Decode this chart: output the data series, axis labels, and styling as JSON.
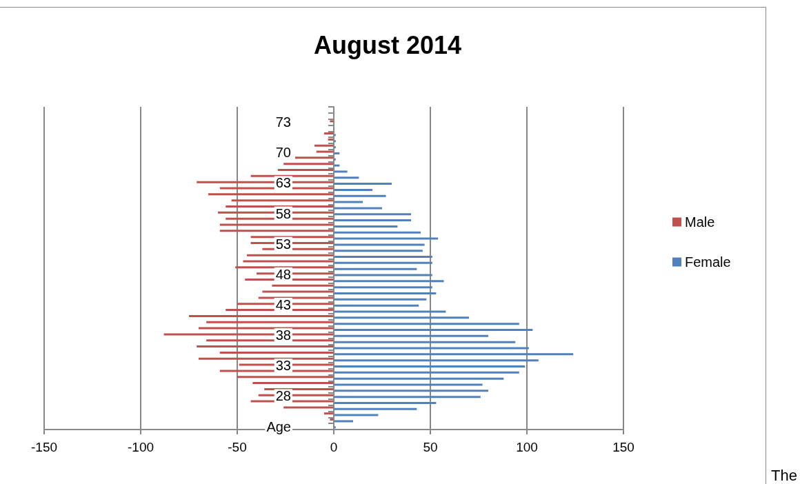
{
  "chart_data": {
    "type": "bar",
    "title": "August 2014",
    "orientation": "horizontal",
    "categories": [
      null,
      null,
      "73",
      null,
      null,
      null,
      null,
      "70",
      null,
      null,
      null,
      null,
      "63",
      null,
      null,
      null,
      null,
      "58",
      null,
      null,
      null,
      null,
      "53",
      null,
      null,
      null,
      null,
      "48",
      null,
      null,
      null,
      null,
      "43",
      null,
      null,
      null,
      null,
      "38",
      null,
      null,
      null,
      null,
      "33",
      null,
      null,
      null,
      null,
      "28",
      null,
      null,
      null,
      null,
      "Age"
    ],
    "series": [
      {
        "name": "Male",
        "color": "#c0504d",
        "values": [
          0,
          0,
          -2,
          0,
          -5,
          -3,
          -10,
          -9,
          -20,
          -26,
          -29,
          -43,
          -71,
          -59,
          -65,
          -53,
          -56,
          -60,
          -56,
          -59,
          -59,
          -43,
          -43,
          -37,
          -45,
          -47,
          -51,
          -40,
          -46,
          -32,
          -37,
          -39,
          -50,
          -56,
          -75,
          -66,
          -70,
          -88,
          -66,
          -71,
          -59,
          -70,
          -49,
          -59,
          -50,
          -42,
          -36,
          -39,
          -43,
          -26,
          -5,
          -2,
          0
        ]
      },
      {
        "name": "Female",
        "color": "#4f81bd",
        "values": [
          0,
          0,
          0,
          0,
          1,
          1,
          1,
          3,
          1,
          3,
          7,
          13,
          30,
          20,
          27,
          15,
          25,
          40,
          40,
          33,
          45,
          54,
          47,
          46,
          51,
          51,
          43,
          51,
          57,
          51,
          53,
          48,
          44,
          58,
          70,
          96,
          103,
          80,
          94,
          101,
          124,
          106,
          99,
          96,
          88,
          77,
          80,
          76,
          53,
          43,
          23,
          10,
          1
        ]
      }
    ],
    "xlim": [
      -150,
      150
    ],
    "xticks": [
      -150,
      -100,
      -50,
      0,
      50,
      100,
      150
    ],
    "grid": "x",
    "legend": "right",
    "annotations": [
      "The"
    ]
  }
}
